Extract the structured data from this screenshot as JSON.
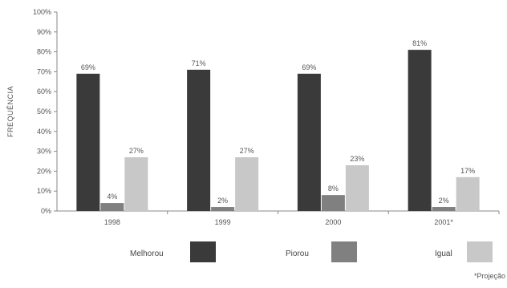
{
  "chart_data": {
    "type": "bar",
    "ylabel": "FREQUÊNCIA",
    "xlabel": "",
    "ylim": [
      0,
      100
    ],
    "y_ticks": [
      "0%",
      "10%",
      "20%",
      "30%",
      "40%",
      "50%",
      "60%",
      "70%",
      "80%",
      "90%",
      "100%"
    ],
    "categories": [
      "1998",
      "1999",
      "2000",
      "2001*"
    ],
    "series": [
      {
        "name": "Melhorou",
        "color": "#3a3a3a",
        "values": [
          69,
          71,
          69,
          81
        ],
        "labels": [
          "69%",
          "71%",
          "69%",
          "81%"
        ]
      },
      {
        "name": "Piorou",
        "color": "#808080",
        "values": [
          4,
          2,
          8,
          2
        ],
        "labels": [
          "4%",
          "2%",
          "8%",
          "2%"
        ]
      },
      {
        "name": "Igual",
        "color": "#c8c8c8",
        "values": [
          27,
          27,
          23,
          17
        ],
        "labels": [
          "27%",
          "27%",
          "23%",
          "17%"
        ]
      }
    ],
    "grid": false,
    "legend": "bottom",
    "footnote": "*Projeção"
  }
}
